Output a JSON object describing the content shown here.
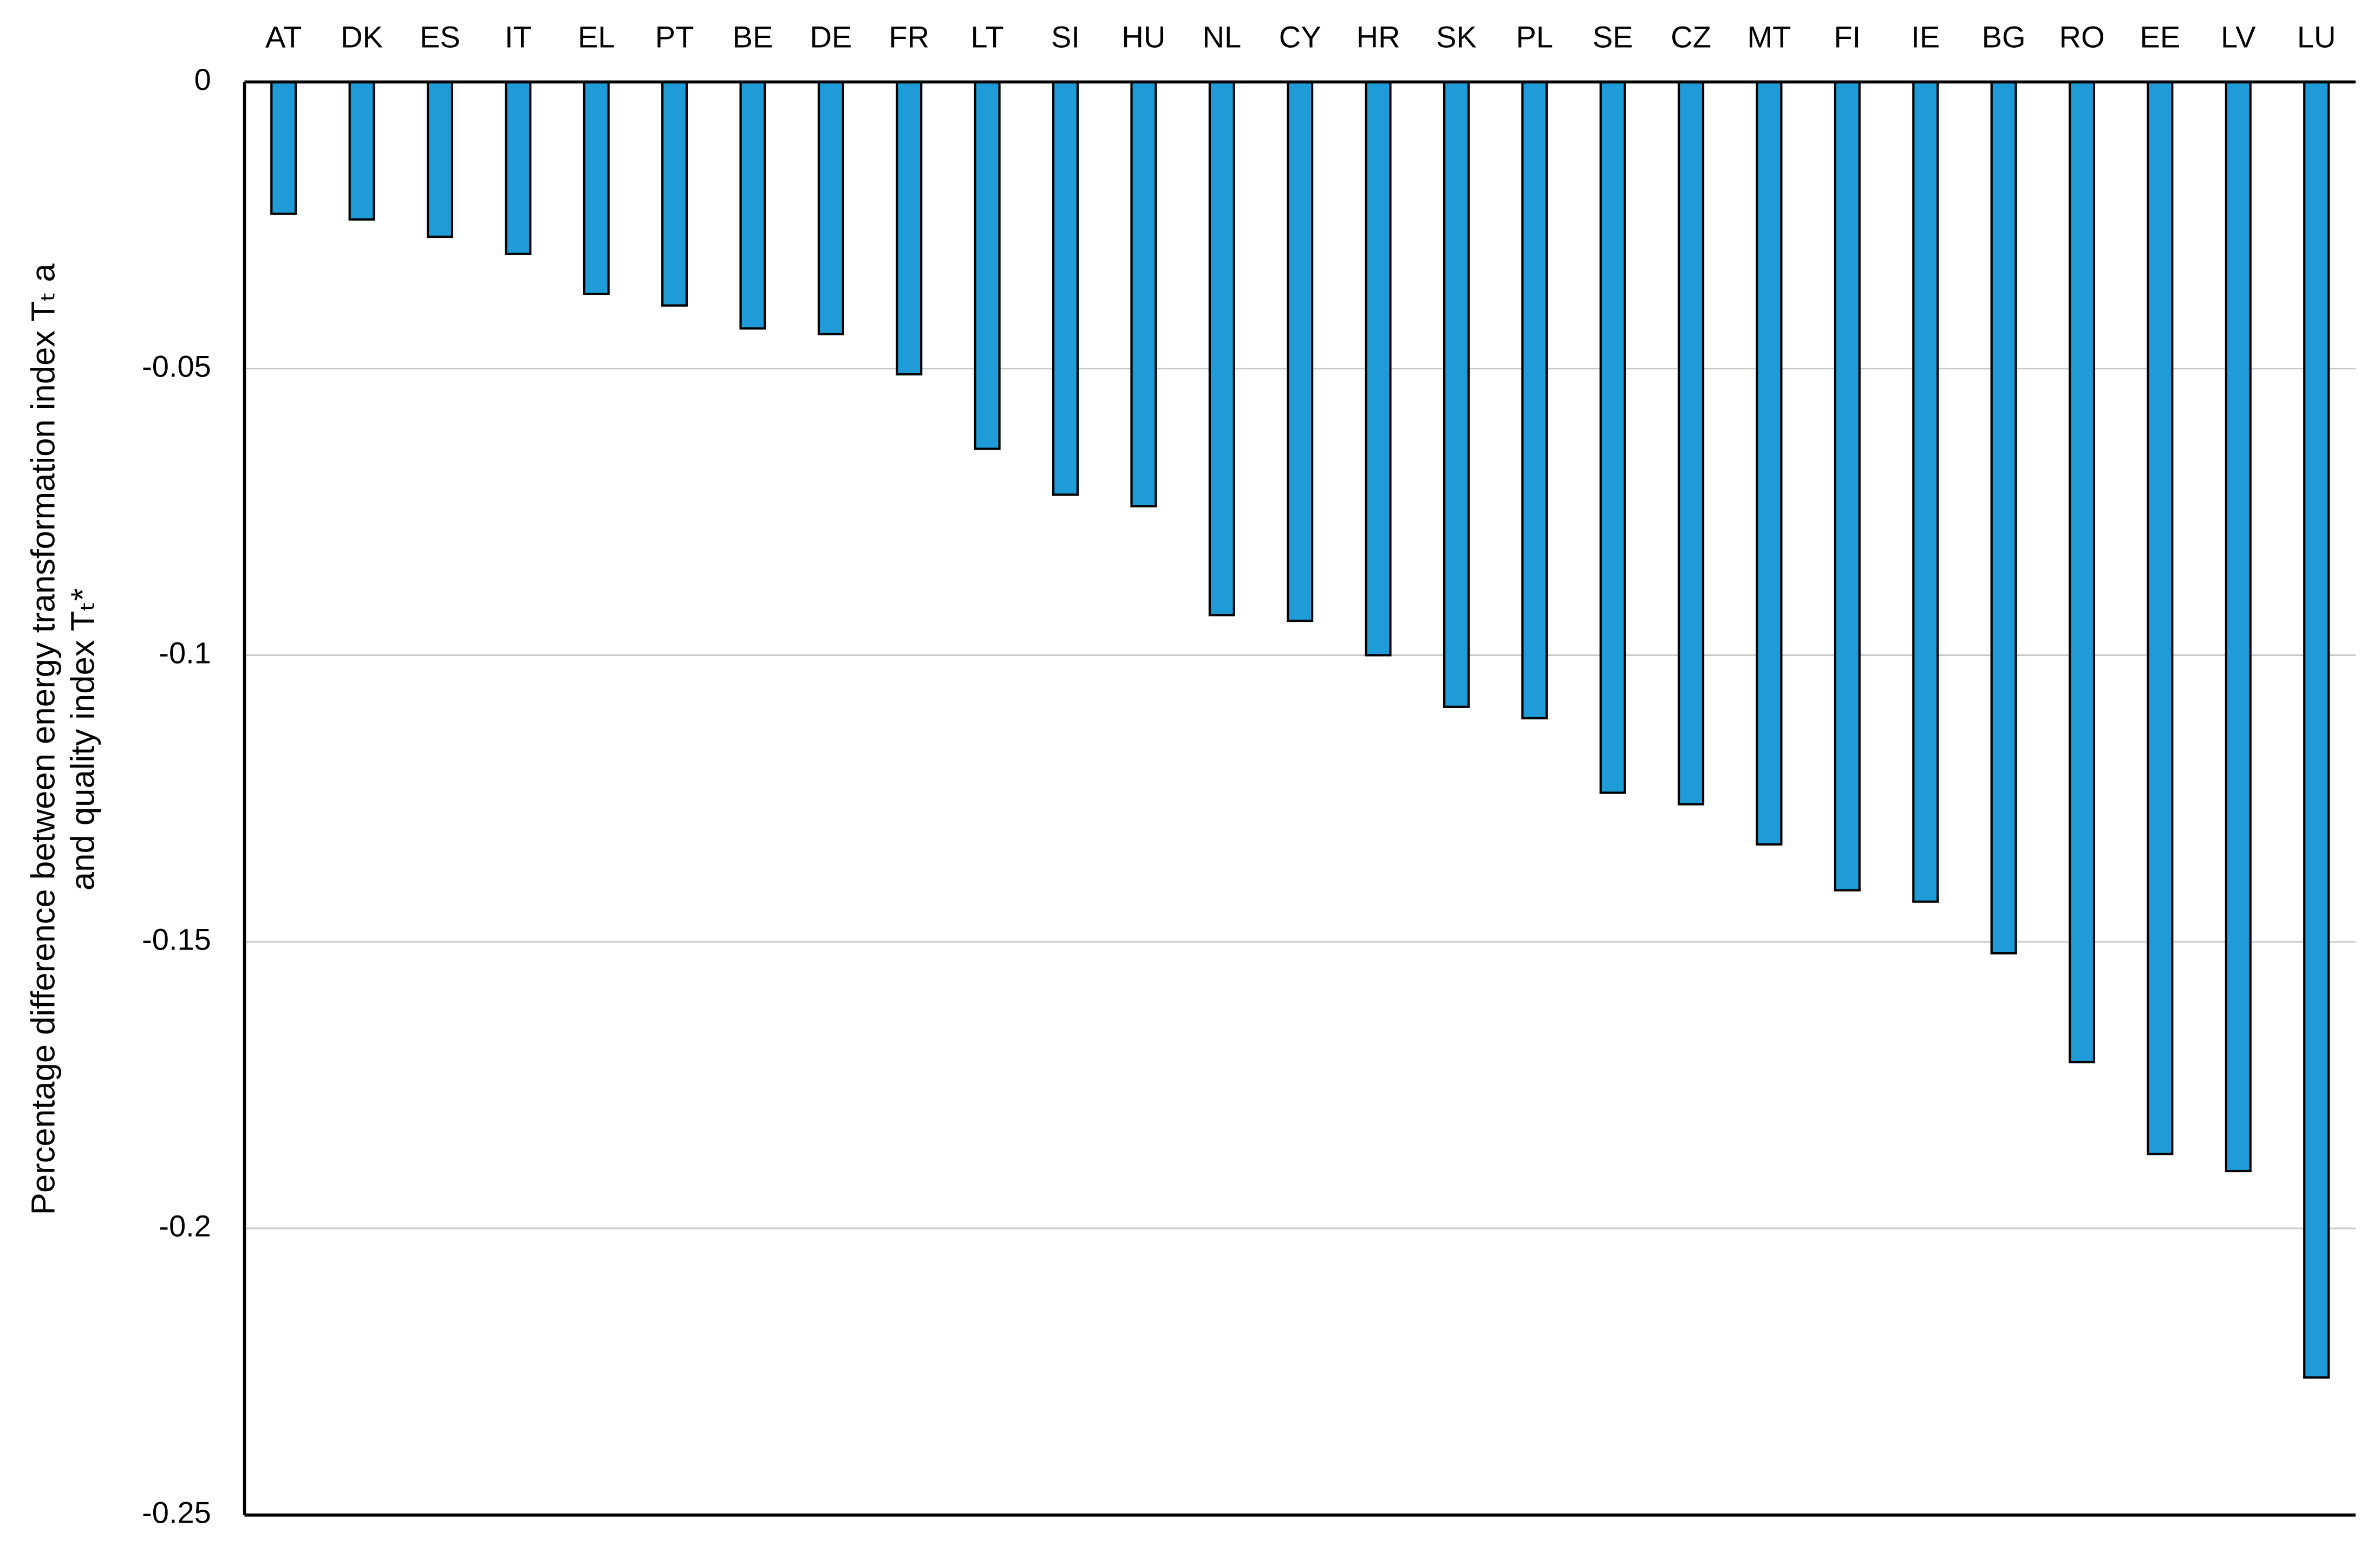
{
  "chart_data": {
    "type": "bar",
    "y_label": [
      "Percentage difference between energy transformation index Tₜ a",
      "and quality index Tₜ*"
    ],
    "categories": [
      "AT",
      "DK",
      "ES",
      "IT",
      "EL",
      "PT",
      "BE",
      "DE",
      "FR",
      "LT",
      "SI",
      "HU",
      "NL",
      "CY",
      "HR",
      "SK",
      "PL",
      "SE",
      "CZ",
      "MT",
      "FI",
      "IE",
      "BG",
      "RO",
      "EE",
      "LV",
      "LU"
    ],
    "values": [
      -0.023,
      -0.024,
      -0.027,
      -0.03,
      -0.037,
      -0.039,
      -0.043,
      -0.044,
      -0.051,
      -0.064,
      -0.072,
      -0.074,
      -0.093,
      -0.094,
      -0.1,
      -0.109,
      -0.111,
      -0.124,
      -0.126,
      -0.133,
      -0.141,
      -0.143,
      -0.152,
      -0.171,
      -0.187,
      -0.19,
      -0.226
    ],
    "color": "#1f9bd7",
    "ylim": [
      -0.25,
      0
    ],
    "yticks": [
      0,
      -0.05,
      -0.1,
      -0.15,
      -0.2,
      -0.25
    ],
    "grid": true
  }
}
